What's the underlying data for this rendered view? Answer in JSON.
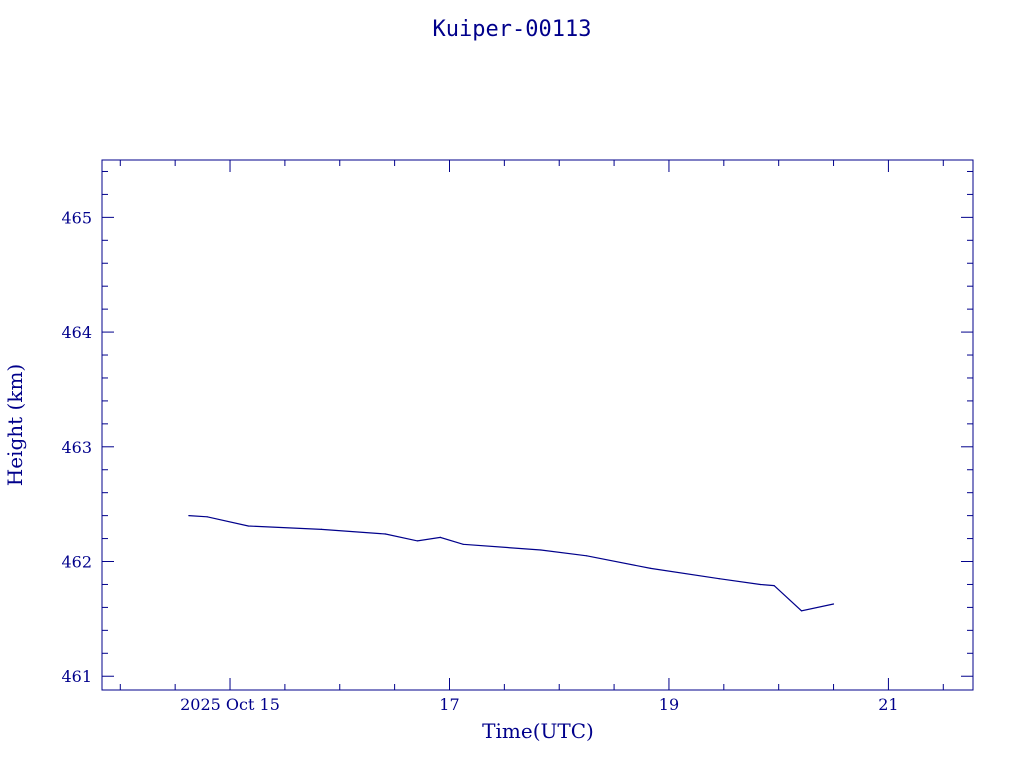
{
  "chart_data": {
    "type": "line",
    "title": "Kuiper-00113",
    "xlabel": "Time(UTC)",
    "ylabel": "Height (km)",
    "x_tick_labels": [
      "2025 Oct 15",
      "17",
      "19",
      "21"
    ],
    "x_tick_values": [
      "2025-10-15",
      "2025-10-17",
      "2025-10-19",
      "2025-10-21"
    ],
    "y_tick_labels": [
      "461",
      "462",
      "463",
      "464",
      "465"
    ],
    "xlim": [
      "2025-10-13T20:00",
      "2025-10-21T18:30"
    ],
    "ylim": [
      460.88,
      465.5
    ],
    "grid": false,
    "colors": {
      "line": "#00008b",
      "axes": "#00008b",
      "text": "#00008b"
    },
    "series": [
      {
        "x": [
          "2025-10-14T15:00",
          "2025-10-14T19:00",
          "2025-10-15T04:00",
          "2025-10-15T20:00",
          "2025-10-16T10:00",
          "2025-10-16T17:00",
          "2025-10-16T22:00",
          "2025-10-17T03:00",
          "2025-10-17T20:00",
          "2025-10-18T06:00",
          "2025-10-18T20:00",
          "2025-10-19T11:00",
          "2025-10-19T20:00",
          "2025-10-19T23:00",
          "2025-10-20T05:00",
          "2025-10-20T12:00"
        ],
        "y": [
          462.4,
          462.39,
          462.31,
          462.28,
          462.24,
          462.18,
          462.21,
          462.15,
          462.1,
          462.05,
          461.94,
          461.85,
          461.8,
          461.79,
          461.57,
          461.63
        ]
      }
    ]
  }
}
